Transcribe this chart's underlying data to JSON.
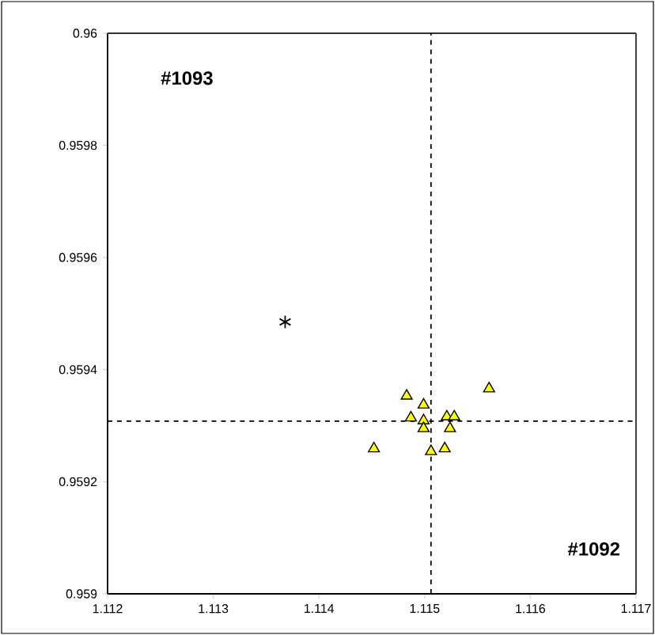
{
  "chart_data": {
    "type": "scatter",
    "annotations": [
      "#1093",
      "#1092"
    ],
    "series": [
      {
        "marker": "cross",
        "color": "#000000",
        "x": [
          1.11368
        ],
        "values": [
          0.959485
        ]
      },
      {
        "marker": "triangle",
        "color": "#ffff00",
        "x": [
          1.11483,
          1.11499,
          1.11487,
          1.11499,
          1.11499,
          1.11521,
          1.11528,
          1.11524,
          1.11452,
          1.11506,
          1.11519,
          1.11561
        ],
        "values": [
          0.959353,
          0.959337,
          0.959314,
          0.959309,
          0.959295,
          0.959316,
          0.959316,
          0.959295,
          0.959259,
          0.959254,
          0.959259,
          0.959366
        ]
      }
    ],
    "xlim": [
      1.112,
      1.117
    ],
    "ylim": [
      0.959,
      0.96
    ],
    "xticks": [
      1.112,
      1.113,
      1.114,
      1.115,
      1.116,
      1.117
    ],
    "yticks": [
      0.959,
      0.9592,
      0.9594,
      0.9596,
      0.9598,
      0.96
    ],
    "ref_lines": [
      {
        "axis": "x",
        "value": 1.11506,
        "line_style": "dashed",
        "color": "#000000"
      },
      {
        "axis": "y",
        "value": 0.959308,
        "line_style": "dashed",
        "color": "#000000"
      }
    ],
    "grid": false
  }
}
